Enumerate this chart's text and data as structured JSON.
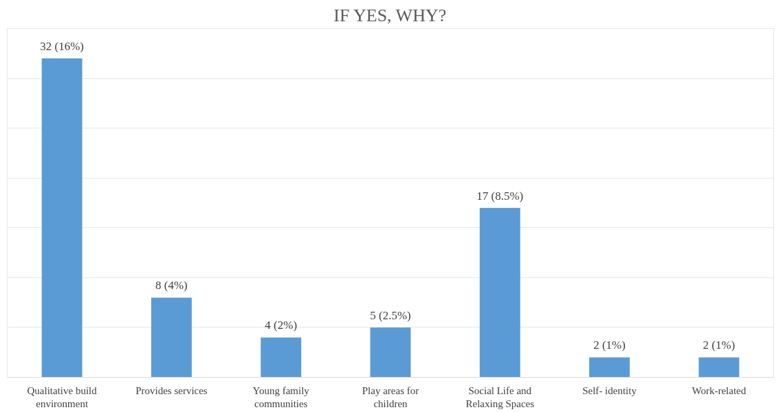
{
  "chart_data": {
    "type": "bar",
    "title": "IF YES, WHY?",
    "categories": [
      "Qualitative build environment",
      "Provides services",
      "Young family communities",
      "Play areas for children",
      "Social Life and Relaxing Spaces",
      "Self- identity",
      "Work-related"
    ],
    "values": [
      32,
      8,
      4,
      5,
      17,
      2,
      2
    ],
    "value_labels": [
      "32 (16%)",
      "8 (4%)",
      "4 (2%)",
      "5 (2.5%)",
      "17 (8.5%)",
      "2 (1%)",
      "2 (1%)"
    ],
    "color": "#5b9bd5",
    "ylim": [
      0,
      35
    ],
    "yticks": [
      {
        "value": 0,
        "label": null
      },
      {
        "value": 5,
        "label": null
      },
      {
        "value": 10,
        "label": null
      },
      {
        "value": 15,
        "label": null
      },
      {
        "value": 20,
        "label": null
      },
      {
        "value": 25,
        "label": null
      },
      {
        "value": 30,
        "label": null
      },
      {
        "value": 35,
        "label": null
      }
    ],
    "grid": "y",
    "tick_labels": "x"
  }
}
